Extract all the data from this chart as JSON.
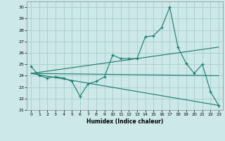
{
  "title": "",
  "xlabel": "Humidex (Indice chaleur)",
  "ylabel": "",
  "bg_color": "#cce8e8",
  "grid_color": "#aacccc",
  "line_color": "#1a7a6e",
  "xlim": [
    -0.5,
    23.5
  ],
  "ylim": [
    21,
    30.5
  ],
  "yticks": [
    21,
    22,
    23,
    24,
    25,
    26,
    27,
    28,
    29,
    30
  ],
  "xticks": [
    0,
    1,
    2,
    3,
    4,
    5,
    6,
    7,
    8,
    9,
    10,
    11,
    12,
    13,
    14,
    15,
    16,
    17,
    18,
    19,
    20,
    21,
    22,
    23
  ],
  "series1": {
    "x": [
      0,
      1,
      2,
      3,
      4,
      5,
      6,
      7,
      8,
      9,
      10,
      11,
      12,
      13,
      14,
      15,
      16,
      17,
      18,
      19,
      20,
      21,
      22,
      23
    ],
    "y": [
      24.8,
      24.0,
      23.8,
      23.9,
      23.8,
      23.5,
      22.2,
      23.3,
      23.5,
      23.9,
      25.8,
      25.5,
      25.5,
      25.5,
      27.4,
      27.5,
      28.2,
      30.0,
      26.5,
      25.1,
      24.2,
      25.0,
      22.6,
      21.4
    ]
  },
  "series2": {
    "x": [
      0,
      23
    ],
    "y": [
      24.2,
      26.5
    ]
  },
  "series3": {
    "x": [
      0,
      23
    ],
    "y": [
      24.2,
      21.4
    ]
  },
  "series4": {
    "x": [
      0,
      23
    ],
    "y": [
      24.2,
      24.0
    ]
  }
}
